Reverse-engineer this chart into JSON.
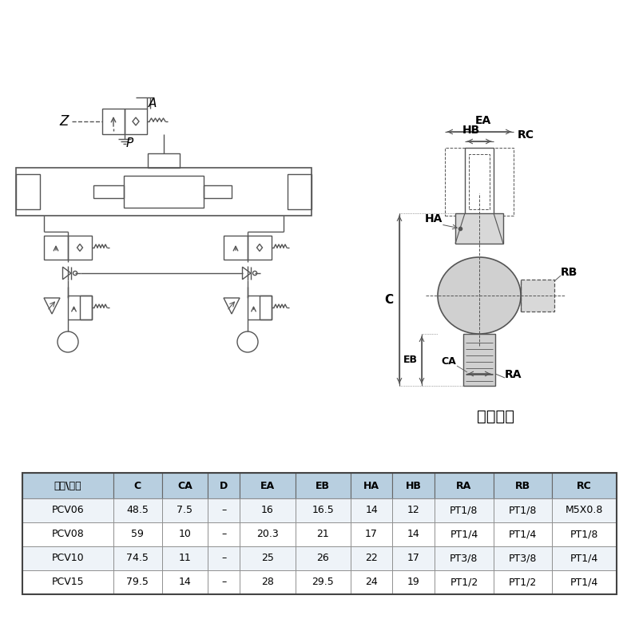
{
  "title": "",
  "bg_color": "#ffffff",
  "table_header": [
    "型號\\符號",
    "C",
    "CA",
    "D",
    "EA",
    "EB",
    "HA",
    "HB",
    "RA",
    "RB",
    "RC"
  ],
  "table_rows": [
    [
      "PCV06",
      "48.5",
      "7.5",
      "–",
      "16",
      "16.5",
      "14",
      "12",
      "PT1/8",
      "PT1/8",
      "M5X0.8"
    ],
    [
      "PCV08",
      "59",
      "10",
      "–",
      "20.3",
      "21",
      "17",
      "14",
      "PT1/4",
      "PT1/4",
      "PT1/8"
    ],
    [
      "PCV10",
      "74.5",
      "11",
      "–",
      "25",
      "26",
      "22",
      "17",
      "PT3/8",
      "PT3/8",
      "PT1/4"
    ],
    [
      "PCV15",
      "79.5",
      "14",
      "–",
      "28",
      "29.5",
      "24",
      "19",
      "PT1/2",
      "PT1/2",
      "PT1/4"
    ]
  ],
  "header_bg": "#b8cfe0",
  "line_color": "#555555",
  "text_color": "#000000",
  "inner_text": "內螺紋式"
}
